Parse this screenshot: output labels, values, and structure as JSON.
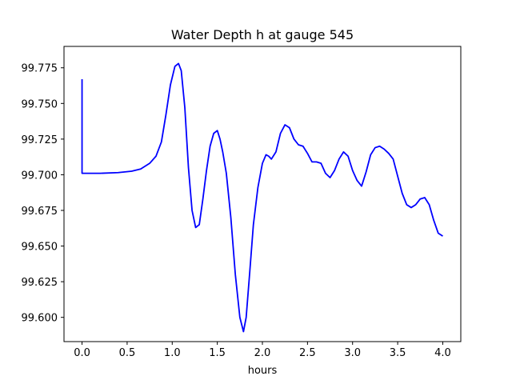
{
  "chart_data": {
    "type": "line",
    "title": "Water Depth h at gauge 545",
    "xlabel": "hours",
    "ylabel": "",
    "xlim": [
      -0.2,
      4.2
    ],
    "ylim": [
      99.583,
      99.79
    ],
    "x_ticks": [
      0.0,
      0.5,
      1.0,
      1.5,
      2.0,
      2.5,
      3.0,
      3.5,
      4.0
    ],
    "x_tick_labels": [
      "0.0",
      "0.5",
      "1.0",
      "1.5",
      "2.0",
      "2.5",
      "3.0",
      "3.5",
      "4.0"
    ],
    "y_ticks": [
      99.6,
      99.625,
      99.65,
      99.675,
      99.7,
      99.725,
      99.75,
      99.775
    ],
    "y_tick_labels": [
      "99.600",
      "99.625",
      "99.650",
      "99.675",
      "99.700",
      "99.725",
      "99.750",
      "99.775"
    ],
    "grid": false,
    "series": [
      {
        "color": "#0000ff",
        "x": [
          0.0,
          0.0,
          0.2,
          0.4,
          0.55,
          0.65,
          0.75,
          0.82,
          0.88,
          0.93,
          0.98,
          1.03,
          1.07,
          1.1,
          1.14,
          1.18,
          1.22,
          1.26,
          1.3,
          1.34,
          1.38,
          1.42,
          1.46,
          1.5,
          1.53,
          1.56,
          1.6,
          1.65,
          1.7,
          1.75,
          1.79,
          1.82,
          1.86,
          1.9,
          1.95,
          2.0,
          2.04,
          2.07,
          2.1,
          2.15,
          2.2,
          2.25,
          2.3,
          2.35,
          2.4,
          2.45,
          2.5,
          2.55,
          2.6,
          2.65,
          2.7,
          2.75,
          2.8,
          2.85,
          2.9,
          2.95,
          3.0,
          3.05,
          3.1,
          3.15,
          3.2,
          3.25,
          3.3,
          3.35,
          3.4,
          3.45,
          3.5,
          3.55,
          3.6,
          3.65,
          3.7,
          3.75,
          3.8,
          3.85,
          3.9,
          3.95,
          4.0
        ],
        "y": [
          99.767,
          99.701,
          99.701,
          99.7015,
          99.7025,
          99.704,
          99.708,
          99.713,
          99.723,
          99.742,
          99.763,
          99.776,
          99.778,
          99.773,
          99.747,
          99.705,
          99.675,
          99.663,
          99.665,
          99.683,
          99.703,
          99.72,
          99.729,
          99.731,
          99.725,
          99.716,
          99.701,
          99.67,
          99.63,
          99.6,
          99.59,
          99.6,
          99.632,
          99.665,
          99.691,
          99.708,
          99.714,
          99.713,
          99.711,
          99.716,
          99.729,
          99.735,
          99.733,
          99.725,
          99.721,
          99.72,
          99.715,
          99.709,
          99.709,
          99.708,
          99.701,
          99.698,
          99.703,
          99.711,
          99.716,
          99.713,
          99.703,
          99.696,
          99.692,
          99.702,
          99.714,
          99.719,
          99.72,
          99.718,
          99.715,
          99.711,
          99.699,
          99.687,
          99.679,
          99.677,
          99.679,
          99.683,
          99.684,
          99.679,
          99.668,
          99.659,
          99.657
        ]
      }
    ]
  }
}
